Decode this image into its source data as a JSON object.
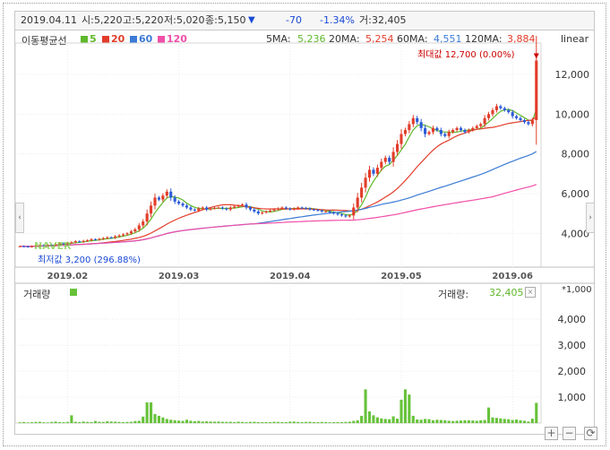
{
  "quote_bar": {
    "date": "2019.04.11",
    "open_label": "시:",
    "open": "5,220",
    "high_label": "고:",
    "high": "5,220",
    "low_label": "저:",
    "low": "5,020",
    "close_label": "종:",
    "close": "5,150",
    "arrow": "▼",
    "change": "-70",
    "change_pct": "-1.34%",
    "volume_label": "거:",
    "volume": "32,405"
  },
  "legend": {
    "title": "이동평균선",
    "items": [
      {
        "label": "5",
        "color": "#5fb82a"
      },
      {
        "label": "20",
        "color": "#e23d2a"
      },
      {
        "label": "60",
        "color": "#3b7bd6"
      },
      {
        "label": "120",
        "color": "#f04fa8"
      }
    ]
  },
  "ma_readout": {
    "ma5_label": "5MA:",
    "ma5": "5,236",
    "ma20_label": "20MA:",
    "ma20": "5,254",
    "ma60_label": "60MA:",
    "ma60": "4,551",
    "ma120_label": "120MA:",
    "ma120": "3,884"
  },
  "scale_mode": "linear",
  "volume_panel": {
    "title": "거래량",
    "readout_label": "거래량:",
    "readout_value": "32,405",
    "unit": "*1,000"
  },
  "annotations": {
    "max": "최대값 12,700 (0.00%)",
    "min": "최저값 3,200 (296.88%)"
  },
  "watermark": "NAVER",
  "controls": {
    "zoom_in": "+",
    "zoom_out": "−",
    "reset": "⟳"
  },
  "chart_data": [
    {
      "type": "candlestick",
      "name": "price",
      "y_ticks": [
        4000,
        6000,
        8000,
        10000,
        12000
      ],
      "y_tick_labels": [
        "4,000",
        "6,000",
        "8,000",
        "10,000",
        "12,000"
      ],
      "ylim": [
        2300,
        13400
      ],
      "x_tick_labels": [
        "2019.02",
        "2019.03",
        "2019.04",
        "2019.05",
        "2019.06"
      ],
      "x_tick_index": [
        12,
        40,
        68,
        96,
        124
      ],
      "x_count": 130,
      "colors": {
        "up": "#e23d2a",
        "down": "#2a5bd6"
      },
      "close": [
        3350,
        3340,
        3330,
        3350,
        3380,
        3400,
        3390,
        3420,
        3400,
        3450,
        3500,
        3480,
        3520,
        3550,
        3600,
        3580,
        3620,
        3650,
        3700,
        3680,
        3720,
        3760,
        3800,
        3780,
        3850,
        3900,
        3950,
        4000,
        4100,
        4200,
        4400,
        4600,
        5000,
        5400,
        5800,
        5700,
        5900,
        6100,
        5800,
        5600,
        5500,
        5400,
        5300,
        5200,
        5150,
        5250,
        5300,
        5200,
        5250,
        5280,
        5300,
        5250,
        5200,
        5300,
        5350,
        5400,
        5450,
        5300,
        5200,
        5100,
        5000,
        5050,
        5100,
        5150,
        5200,
        5250,
        5300,
        5250,
        5200,
        5250,
        5300,
        5280,
        5250,
        5200,
        5180,
        5150,
        5100,
        5100,
        5050,
        5000,
        4950,
        4900,
        4850,
        4900,
        5300,
        5800,
        6300,
        6800,
        7200,
        7000,
        7300,
        7600,
        7800,
        7600,
        8100,
        8500,
        9000,
        9200,
        9500,
        9800,
        9600,
        9300,
        9000,
        9100,
        9300,
        9200,
        9000,
        8900,
        9100,
        9200,
        9300,
        9200,
        9100,
        9200,
        9300,
        9400,
        9500,
        9800,
        10000,
        10200,
        10400,
        10300,
        10200,
        10100,
        9900,
        9800,
        9700,
        9600,
        9500,
        9700,
        12700
      ],
      "volume": [
        30,
        40,
        25,
        35,
        45,
        50,
        30,
        25,
        45,
        60,
        40,
        35,
        45,
        300,
        50,
        40,
        60,
        45,
        40,
        80,
        50,
        45,
        70,
        60,
        55,
        45,
        40,
        45,
        50,
        80,
        90,
        250,
        800,
        800,
        350,
        280,
        220,
        160,
        130,
        110,
        95,
        85,
        130,
        90,
        75,
        85,
        60,
        70,
        60,
        55,
        60,
        50,
        45,
        50,
        40,
        55,
        45,
        35,
        45,
        50,
        40,
        35,
        40,
        40,
        50,
        45,
        40,
        40,
        55,
        60,
        45,
        40,
        45,
        50,
        40,
        35,
        45,
        40,
        30,
        35,
        40,
        40,
        45,
        55,
        85,
        110,
        280,
        1300,
        450,
        300,
        220,
        180,
        160,
        150,
        260,
        170,
        900,
        1300,
        1100,
        280,
        140,
        130,
        160,
        150,
        110,
        130,
        120,
        110,
        90,
        80,
        90,
        100,
        110,
        110,
        100,
        90,
        110,
        120,
        600,
        220,
        200,
        180,
        160,
        150,
        120,
        140,
        110,
        90,
        60,
        170,
        780
      ]
    }
  ]
}
